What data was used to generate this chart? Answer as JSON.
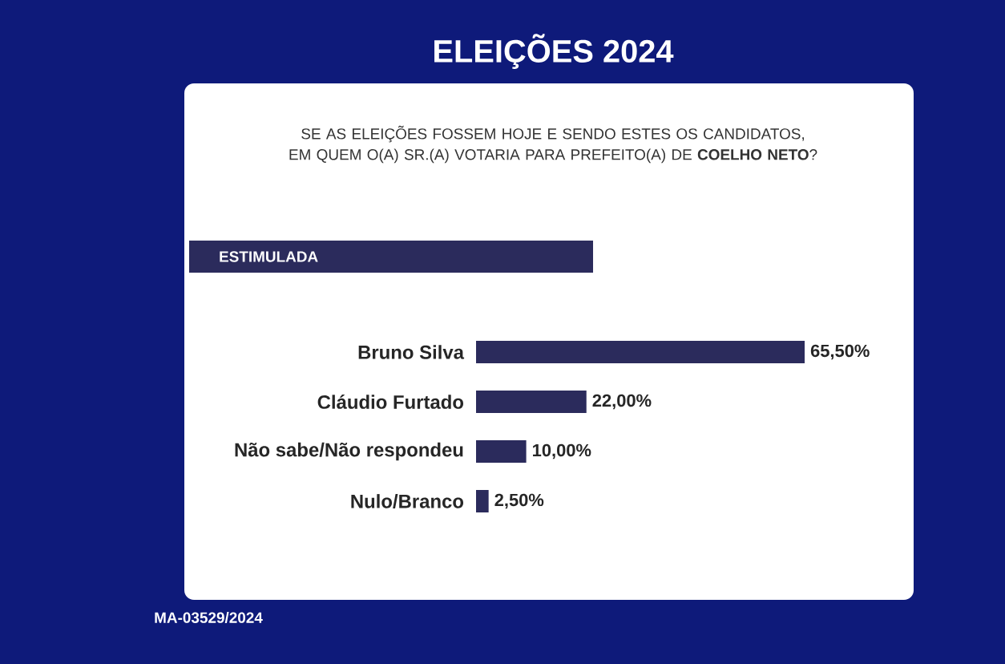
{
  "chart_data": {
    "type": "bar",
    "orientation": "horizontal",
    "title": "ELEIÇÕES 2024",
    "subtitle": "SE AS ELEIÇÕES FOSSEM HOJE E SENDO ESTES OS CANDIDATOS, EM QUEM O(A) SR.(A) VOTARIA PARA PREFEITO(A) DE **COELHO NETO**?",
    "categories": [
      "Bruno Silva",
      "Cláudio Furtado",
      "Não sabe/Não respondeu",
      "Nulo/Branco"
    ],
    "values": [
      65.5,
      22.0,
      10.0,
      2.5
    ],
    "value_labels": [
      "65,50%",
      "22,00%",
      "10,00%",
      "2,50%"
    ],
    "color": "#2b2b5c",
    "annotations": [
      "ESTIMULADA",
      "MA-03529/2024"
    ]
  }
}
